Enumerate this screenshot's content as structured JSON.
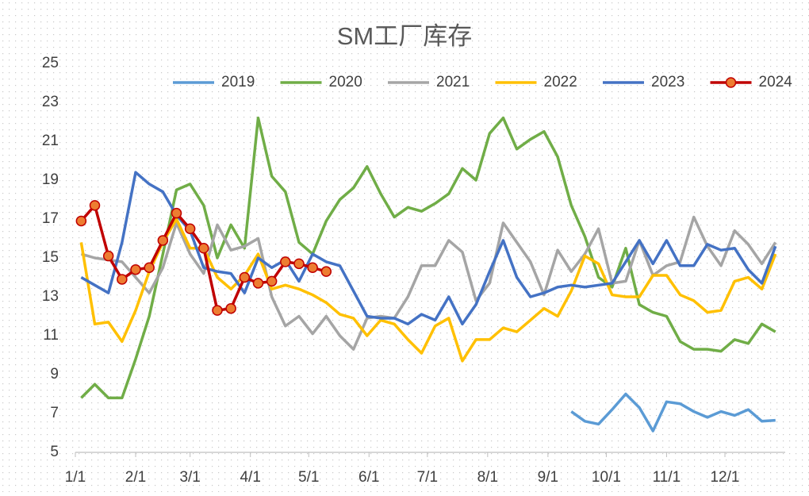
{
  "chart_data": {
    "type": "line",
    "title": "SM工厂库存",
    "x": [
      3,
      10,
      17,
      24,
      31,
      38,
      45,
      52,
      59,
      66,
      73,
      80,
      87,
      94,
      101,
      108,
      115,
      122,
      129,
      136,
      143,
      150,
      157,
      164,
      171,
      178,
      185,
      192,
      199,
      206,
      213,
      220,
      227,
      234,
      241,
      248,
      255,
      262,
      269,
      276,
      283,
      290,
      297,
      304,
      311,
      318,
      325,
      332,
      339,
      346,
      353,
      360
    ],
    "xlim": [
      0,
      365
    ],
    "xticks": [
      {
        "value": 0,
        "label": "1/1"
      },
      {
        "value": 31,
        "label": "2/1"
      },
      {
        "value": 59,
        "label": "3/1"
      },
      {
        "value": 90,
        "label": "4/1"
      },
      {
        "value": 120,
        "label": "5/1"
      },
      {
        "value": 151,
        "label": "6/1"
      },
      {
        "value": 181,
        "label": "7/1"
      },
      {
        "value": 212,
        "label": "8/1"
      },
      {
        "value": 243,
        "label": "9/1"
      },
      {
        "value": 273,
        "label": "10/1"
      },
      {
        "value": 304,
        "label": "11/1"
      },
      {
        "value": 334,
        "label": "12/1"
      }
    ],
    "ylim": [
      5,
      25
    ],
    "yticks": [
      5,
      7,
      9,
      11,
      13,
      15,
      17,
      19,
      21,
      23,
      25
    ],
    "grid": false,
    "legend": "top",
    "series": [
      {
        "name": "2019",
        "color": "#5b9bd5",
        "values": [
          null,
          null,
          null,
          null,
          null,
          null,
          null,
          null,
          null,
          null,
          null,
          null,
          null,
          null,
          null,
          null,
          null,
          null,
          null,
          null,
          null,
          null,
          null,
          null,
          null,
          null,
          null,
          null,
          null,
          null,
          null,
          null,
          null,
          null,
          null,
          null,
          7.1,
          6.6,
          6.45,
          7.2,
          8.0,
          7.3,
          6.1,
          7.6,
          7.5,
          7.1,
          6.8,
          7.1,
          6.9,
          7.2,
          6.6,
          6.65
        ]
      },
      {
        "name": "2020",
        "color": "#70ad47",
        "values": [
          7.8,
          8.5,
          7.8,
          7.8,
          9.8,
          12.0,
          15.2,
          18.5,
          18.8,
          17.7,
          15.0,
          16.7,
          15.5,
          22.2,
          19.2,
          18.4,
          15.8,
          15.2,
          16.9,
          18.0,
          18.6,
          19.7,
          18.3,
          17.1,
          17.6,
          17.4,
          17.8,
          18.3,
          19.6,
          19.0,
          21.4,
          22.2,
          20.6,
          21.1,
          21.5,
          20.2,
          17.7,
          16.1,
          14.0,
          13.5,
          15.5,
          12.6,
          12.2,
          12.0,
          10.7,
          10.3,
          10.3,
          10.2,
          10.8,
          10.6,
          11.6,
          11.2
        ]
      },
      {
        "name": "2021",
        "color": "#a5a5a5",
        "values": [
          15.2,
          15.0,
          14.9,
          14.8,
          14.0,
          13.2,
          14.5,
          16.8,
          15.2,
          14.2,
          16.7,
          15.4,
          15.6,
          16.0,
          13.0,
          11.5,
          12.0,
          11.1,
          12.0,
          11.0,
          10.3,
          11.9,
          12.0,
          11.9,
          13.0,
          14.6,
          14.6,
          15.9,
          15.3,
          12.8,
          13.7,
          16.8,
          15.8,
          14.8,
          13.1,
          15.4,
          14.3,
          15.2,
          16.5,
          13.7,
          13.8,
          15.9,
          14.1,
          14.6,
          14.8,
          17.1,
          15.6,
          14.6,
          16.4,
          15.7,
          14.7,
          15.8
        ]
      },
      {
        "name": "2022",
        "color": "#ffc000",
        "values": [
          15.8,
          11.6,
          11.7,
          10.7,
          12.3,
          14.3,
          15.8,
          17.0,
          15.5,
          15.5,
          14.0,
          13.4,
          14.1,
          15.2,
          13.4,
          13.6,
          13.4,
          13.1,
          12.7,
          12.1,
          11.9,
          11.0,
          11.8,
          11.6,
          10.8,
          10.1,
          11.5,
          11.9,
          9.7,
          10.8,
          10.8,
          11.4,
          11.2,
          11.8,
          12.4,
          12.0,
          13.3,
          15.1,
          14.7,
          13.1,
          13.0,
          13.0,
          14.1,
          14.1,
          13.1,
          12.8,
          12.2,
          12.3,
          13.8,
          14.0,
          13.4,
          15.2
        ]
      },
      {
        "name": "2023",
        "color": "#4472c4",
        "values": [
          14.0,
          13.6,
          13.2,
          15.8,
          19.4,
          18.8,
          18.4,
          17.2,
          16.4,
          14.5,
          14.3,
          14.2,
          13.2,
          15.0,
          14.5,
          14.9,
          13.8,
          15.2,
          14.8,
          14.6,
          13.3,
          12.0,
          11.9,
          11.9,
          11.6,
          12.1,
          11.8,
          13.0,
          11.6,
          12.6,
          14.3,
          15.9,
          14.0,
          13.0,
          13.2,
          13.5,
          13.6,
          13.5,
          13.6,
          13.7,
          14.8,
          15.9,
          14.7,
          15.9,
          14.6,
          14.6,
          15.7,
          15.4,
          15.5,
          14.4,
          13.7,
          15.6
        ]
      },
      {
        "name": "2024",
        "color": "#c00000",
        "markers": true,
        "marker_color": "#ed7d31",
        "values": [
          16.9,
          17.7,
          15.1,
          13.9,
          14.4,
          14.5,
          15.9,
          17.3,
          16.5,
          15.5,
          12.3,
          12.4,
          14.0,
          13.7,
          13.8,
          14.8,
          14.7,
          14.5,
          14.3,
          null,
          null,
          null,
          null,
          null,
          null,
          null,
          null,
          null,
          null,
          null,
          null,
          null,
          null,
          null,
          null,
          null,
          null,
          null,
          null,
          null,
          null,
          null,
          null,
          null,
          null,
          null,
          null,
          null,
          null,
          null,
          null,
          null
        ]
      }
    ]
  }
}
